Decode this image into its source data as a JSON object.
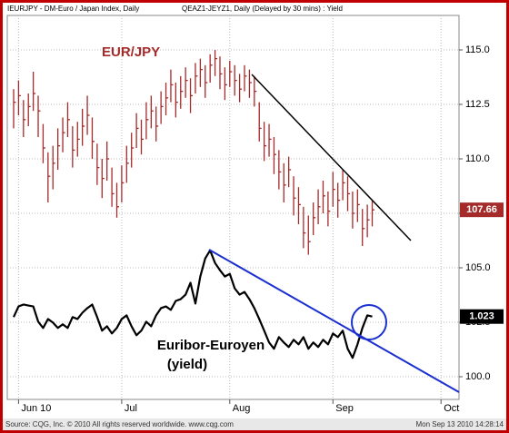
{
  "chart_data": {
    "type": "ohlc",
    "header": [
      "IEURJPY - DM-Euro / Japan Index, Daily",
      "QEAZ1-JEYZ1, Daily (Delayed by 30 mins) : Yield"
    ],
    "footer": [
      "Source: CQG, Inc. © 2010 All rights reserved worldwide. www.cqg.com",
      "Mon Sep 13 2010 14:28:14"
    ],
    "categories": [
      null,
      "Jun 10",
      null,
      null,
      null,
      null,
      null,
      null,
      null,
      null,
      null,
      null,
      null,
      null,
      null,
      null,
      null,
      null,
      null,
      null,
      null,
      null,
      "Jul",
      null,
      null,
      null,
      null,
      null,
      null,
      null,
      null,
      null,
      null,
      null,
      null,
      null,
      null,
      null,
      null,
      null,
      null,
      null,
      null,
      null,
      "Aug",
      null,
      null,
      null,
      null,
      null,
      null,
      null,
      null,
      null,
      null,
      null,
      null,
      null,
      null,
      null,
      null,
      null,
      null,
      null,
      null,
      "Sep",
      null,
      null,
      null,
      null,
      null,
      null,
      null,
      null,
      null,
      null,
      null,
      null,
      null,
      null,
      null,
      null,
      null,
      null,
      null,
      null,
      null,
      "Oct",
      null,
      null
    ],
    "ylim": [
      99,
      116.5
    ],
    "yticks": [
      {
        "value": 100,
        "label": "100.0"
      },
      {
        "value": 102.5,
        "label": "102.5"
      },
      {
        "value": 105,
        "label": "105.0"
      },
      {
        "value": 107.5,
        "label": "107.5"
      },
      {
        "value": 110,
        "label": "110.0"
      },
      {
        "value": 112.5,
        "label": "112.5"
      },
      {
        "value": 115,
        "label": "115.0"
      }
    ],
    "y2lim": [
      0.98,
      1.18
    ],
    "grid": true,
    "series": [
      {
        "type": "ohlc",
        "name": "EUR/JPY",
        "color": "#a52a2a",
        "high": [
          113.2,
          113.6,
          112.7,
          113.0,
          114.0,
          112.9,
          111.6,
          110.3,
          110.6,
          111.4,
          111.9,
          112.6,
          111.5,
          111.7,
          112.3,
          112.9,
          111.9,
          110.7,
          110.0,
          110.8,
          109.6,
          108.9,
          109.7,
          110.6,
          111.2,
          112.1,
          111.8,
          112.6,
          112.9,
          112.4,
          113.1,
          113.5,
          114.1,
          113.5,
          113.8,
          114.2,
          113.7,
          114.4,
          114.6,
          114.3,
          114.8,
          115.0,
          114.7,
          114.2,
          114.5,
          114.3,
          113.9,
          114.3,
          114.1,
          113.8,
          112.6,
          111.7,
          111.6,
          111.0,
          110.4,
          109.8,
          110.1,
          109.2,
          108.7,
          107.8,
          107.4,
          108.0,
          108.6,
          109.0,
          108.5,
          109.4,
          108.9,
          109.5,
          109.2,
          108.5,
          108.6,
          107.7,
          107.9,
          108.1,
          null,
          null,
          null,
          null,
          null,
          null,
          null,
          null,
          null,
          null,
          null,
          null,
          null,
          null,
          null,
          null
        ],
        "low": [
          111.4,
          112.0,
          111.0,
          111.5,
          112.2,
          111.0,
          109.8,
          108.0,
          108.6,
          109.5,
          110.3,
          111.0,
          109.6,
          110.1,
          110.6,
          111.1,
          110.0,
          108.8,
          108.2,
          109.0,
          107.8,
          107.3,
          108.0,
          108.9,
          109.6,
          110.5,
          110.2,
          110.9,
          111.4,
          110.8,
          111.6,
          112.0,
          112.6,
          111.9,
          112.3,
          112.8,
          112.1,
          113.0,
          113.3,
          112.8,
          113.5,
          113.8,
          113.2,
          112.7,
          113.3,
          112.9,
          112.6,
          113.1,
          112.8,
          112.4,
          110.8,
          109.9,
          110.1,
          109.3,
          108.6,
          108.0,
          108.7,
          107.4,
          107.0,
          105.9,
          105.6,
          106.5,
          107.0,
          107.5,
          106.9,
          107.8,
          107.3,
          108.1,
          107.6,
          106.8,
          107.1,
          106.0,
          106.4,
          106.9,
          null,
          null,
          null,
          null,
          null,
          null,
          null,
          null,
          null,
          null,
          null,
          null,
          null,
          null,
          null,
          null
        ],
        "values": [
          112.6,
          112.9,
          111.8,
          112.4,
          113.0,
          112.2,
          110.5,
          109.2,
          109.8,
          110.6,
          111.2,
          111.8,
          110.4,
          110.9,
          111.5,
          112.0,
          110.8,
          109.6,
          109.1,
          110.0,
          108.4,
          107.8,
          108.9,
          109.8,
          110.5,
          111.4,
          110.9,
          111.8,
          112.2,
          111.5,
          112.4,
          112.8,
          113.4,
          112.6,
          113.1,
          113.6,
          112.9,
          113.8,
          114.1,
          113.5,
          114.3,
          114.6,
          113.9,
          113.4,
          114.0,
          113.6,
          113.2,
          113.8,
          113.5,
          113.1,
          111.4,
          110.6,
          110.9,
          110.2,
          109.4,
          108.8,
          109.5,
          108.2,
          107.9,
          106.6,
          106.2,
          107.3,
          107.8,
          108.3,
          107.6,
          108.6,
          108.1,
          108.9,
          108.4,
          107.5,
          107.9,
          106.8,
          107.2,
          107.66,
          null,
          null,
          null,
          null,
          null,
          null,
          null,
          null,
          null,
          null,
          null,
          null,
          null,
          null,
          null,
          null
        ]
      },
      {
        "type": "line",
        "name": [
          "Euribor-Euroyen",
          "(yield)"
        ],
        "color": "#000000",
        "axis": "y2",
        "values": [
          1.0227,
          1.0283,
          1.0293,
          1.0288,
          1.0283,
          1.0203,
          1.017,
          1.0217,
          1.0198,
          1.017,
          1.0189,
          1.017,
          1.0227,
          1.0217,
          1.025,
          1.0274,
          1.0293,
          1.0227,
          1.0156,
          1.0179,
          1.0141,
          1.017,
          1.0217,
          1.0236,
          1.0179,
          1.0132,
          1.0156,
          1.0203,
          1.0179,
          1.0236,
          1.0274,
          1.0283,
          1.0265,
          1.0312,
          1.0321,
          1.0345,
          1.0407,
          1.0298,
          1.044,
          1.0535,
          1.0577,
          1.0511,
          1.0473,
          1.044,
          1.0454,
          1.0378,
          1.0345,
          1.0359,
          1.0321,
          1.0274,
          1.0217,
          1.0156,
          1.0094,
          1.0061,
          1.0122,
          1.0094,
          1.007,
          1.0108,
          1.0084,
          1.0122,
          1.0061,
          1.0094,
          1.007,
          1.0108,
          1.0084,
          1.0141,
          1.0122,
          1.0156,
          1.0061,
          1.0013,
          1.0084,
          1.017,
          1.0236,
          1.023,
          null,
          null,
          null,
          null,
          null,
          null,
          null,
          null,
          null,
          null,
          null,
          null,
          null,
          null,
          null,
          null
        ]
      }
    ]
  }
}
